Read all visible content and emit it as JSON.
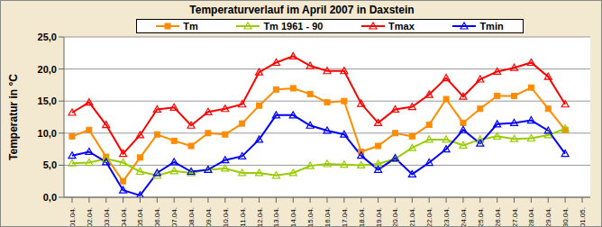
{
  "chart_data": {
    "type": "line",
    "title": "Temperaturverlauf im April 2007 in Daxstein",
    "ylabel": "Temperatur in °C",
    "categories": [
      "01.04.",
      "02.04.",
      "03.04.",
      "04.04.",
      "05.04.",
      "06.04.",
      "07.04.",
      "08.04.",
      "09.04.",
      "10.04.",
      "11.04.",
      "12.04.",
      "13.04.",
      "14.04.",
      "15.04.",
      "16.04.",
      "17.04.",
      "18.04.",
      "19.04.",
      "20.04.",
      "21.04.",
      "22.04.",
      "23.04.",
      "24.04.",
      "25.04.",
      "26.04.",
      "27.04.",
      "28.04.",
      "29.04.",
      "30.04.",
      "01.05."
    ],
    "series": [
      {
        "name": "Tm",
        "color": "#ff8c00",
        "marker": "square",
        "values": [
          9.5,
          10.5,
          6.3,
          2.5,
          6.2,
          9.8,
          8.8,
          8.0,
          10.0,
          9.8,
          11.5,
          14.3,
          16.8,
          17.0,
          16.1,
          14.8,
          15.0,
          7.1,
          8.0,
          10.0,
          9.5,
          11.3,
          15.3,
          11.6,
          13.8,
          15.8,
          15.8,
          17.1,
          13.8,
          10.5,
          null
        ]
      },
      {
        "name": "Tm 1961 - 90",
        "color": "#99cc00",
        "marker": "triangle",
        "values": [
          5.3,
          5.4,
          6.0,
          5.4,
          4.0,
          3.4,
          4.1,
          3.8,
          4.3,
          4.5,
          3.8,
          3.8,
          3.4,
          3.8,
          4.9,
          5.2,
          5.1,
          5.0,
          5.2,
          6.0,
          7.7,
          9.0,
          9.0,
          8.1,
          9.0,
          9.5,
          9.1,
          9.2,
          9.7,
          10.7,
          null
        ]
      },
      {
        "name": "Tmax",
        "color": "#ff0000",
        "marker": "triangle",
        "values": [
          13.2,
          14.8,
          11.3,
          6.8,
          9.7,
          13.7,
          14.0,
          11.2,
          13.3,
          13.8,
          14.5,
          19.5,
          21.0,
          22.0,
          20.5,
          19.7,
          19.7,
          14.6,
          11.6,
          13.7,
          14.1,
          16.0,
          18.6,
          15.7,
          18.4,
          19.6,
          20.2,
          21.0,
          18.8,
          14.5,
          null
        ]
      },
      {
        "name": "Tmin",
        "color": "#0000ff",
        "marker": "triangle",
        "values": [
          6.5,
          7.1,
          5.5,
          1.1,
          0.3,
          3.8,
          5.5,
          4.0,
          4.3,
          5.8,
          6.4,
          9.0,
          12.8,
          12.8,
          11.2,
          10.4,
          9.8,
          6.5,
          4.3,
          6.1,
          3.6,
          5.4,
          7.5,
          10.5,
          8.4,
          11.4,
          11.6,
          12.0,
          10.4,
          6.8,
          null
        ]
      }
    ],
    "ylim": [
      0,
      25
    ],
    "yticks": [
      {
        "value": 0,
        "label": "0,0"
      },
      {
        "value": 5,
        "label": "5,0"
      },
      {
        "value": 10,
        "label": "10,0"
      },
      {
        "value": 15,
        "label": "15,0"
      },
      {
        "value": 20,
        "label": "20,0"
      },
      {
        "value": 25,
        "label": "25,0"
      }
    ],
    "grid": true,
    "legend": "top"
  }
}
